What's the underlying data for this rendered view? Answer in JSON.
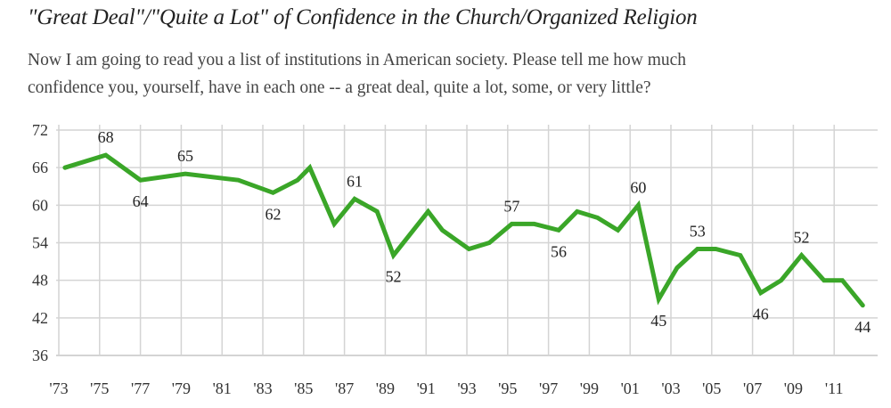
{
  "chart_data": {
    "type": "line",
    "title": "\"Great Deal\"/\"Quite a Lot\" of Confidence in the Church/Organized Religion",
    "subtitle_lines": [
      "Now I am going to read you a list of institutions in American society. Please tell me how much",
      "confidence you, yourself, have in each one -- a great deal, quite a lot, some, or very little?"
    ],
    "xlabel": "",
    "ylabel": "",
    "xlim": [
      1973,
      2013.2
    ],
    "ylim": [
      36,
      72
    ],
    "y_ticks": [
      72,
      66,
      60,
      54,
      48,
      42,
      36
    ],
    "x_ticks": [
      {
        "year": 1973,
        "label": "'73"
      },
      {
        "year": 1975,
        "label": "'75"
      },
      {
        "year": 1977,
        "label": "'77"
      },
      {
        "year": 1979,
        "label": "'79"
      },
      {
        "year": 1981,
        "label": "'81"
      },
      {
        "year": 1983,
        "label": "'83"
      },
      {
        "year": 1985,
        "label": "'85"
      },
      {
        "year": 1987,
        "label": "'87"
      },
      {
        "year": 1989,
        "label": "'89"
      },
      {
        "year": 1991,
        "label": "'91"
      },
      {
        "year": 1993,
        "label": "'93"
      },
      {
        "year": 1995,
        "label": "'95"
      },
      {
        "year": 1997,
        "label": "'97"
      },
      {
        "year": 1999,
        "label": "'99"
      },
      {
        "year": 2001,
        "label": "'01"
      },
      {
        "year": 2003,
        "label": "'03"
      },
      {
        "year": 2005,
        "label": "'05"
      },
      {
        "year": 2007,
        "label": "'07"
      },
      {
        "year": 2009,
        "label": "'09"
      },
      {
        "year": 2011,
        "label": "'11"
      }
    ],
    "grid": true,
    "line_color": "#3aa628",
    "grid_color": "#d4d4d4",
    "series": [
      {
        "x": [
          1973.3,
          1975.3,
          1977.0,
          1979.2,
          1981.8,
          1983.5,
          1984.7,
          1985.3,
          1986.5,
          1987.5,
          1988.6,
          1989.4,
          1991.1,
          1991.8,
          1993.1,
          1994.1,
          1995.2,
          1996.3,
          1997.5,
          1998.4,
          1999.4,
          2000.4,
          2001.4,
          2002.4,
          2003.3,
          2004.3,
          2005.2,
          2006.4,
          2007.4,
          2008.4,
          2009.4,
          2010.5,
          2011.4,
          2012.4
        ],
        "values": [
          66,
          68,
          64,
          65,
          64,
          62,
          64,
          66,
          57,
          61,
          59,
          52,
          59,
          56,
          53,
          54,
          57,
          57,
          56,
          59,
          58,
          56,
          60,
          45,
          50,
          53,
          53,
          52,
          46,
          48,
          52,
          48,
          48,
          44
        ]
      }
    ],
    "data_labels": [
      {
        "index": 1,
        "text": "68",
        "position": "above"
      },
      {
        "index": 2,
        "text": "64",
        "position": "below"
      },
      {
        "index": 3,
        "text": "65",
        "position": "above"
      },
      {
        "index": 5,
        "text": "62",
        "position": "below"
      },
      {
        "index": 9,
        "text": "61",
        "position": "above"
      },
      {
        "index": 11,
        "text": "52",
        "position": "below"
      },
      {
        "index": 16,
        "text": "57",
        "position": "above"
      },
      {
        "index": 18,
        "text": "56",
        "position": "below"
      },
      {
        "index": 22,
        "text": "60",
        "position": "above"
      },
      {
        "index": 23,
        "text": "45",
        "position": "below"
      },
      {
        "index": 25,
        "text": "53",
        "position": "above"
      },
      {
        "index": 28,
        "text": "46",
        "position": "below"
      },
      {
        "index": 30,
        "text": "52",
        "position": "above"
      },
      {
        "index": 33,
        "text": "44",
        "position": "below"
      }
    ]
  }
}
